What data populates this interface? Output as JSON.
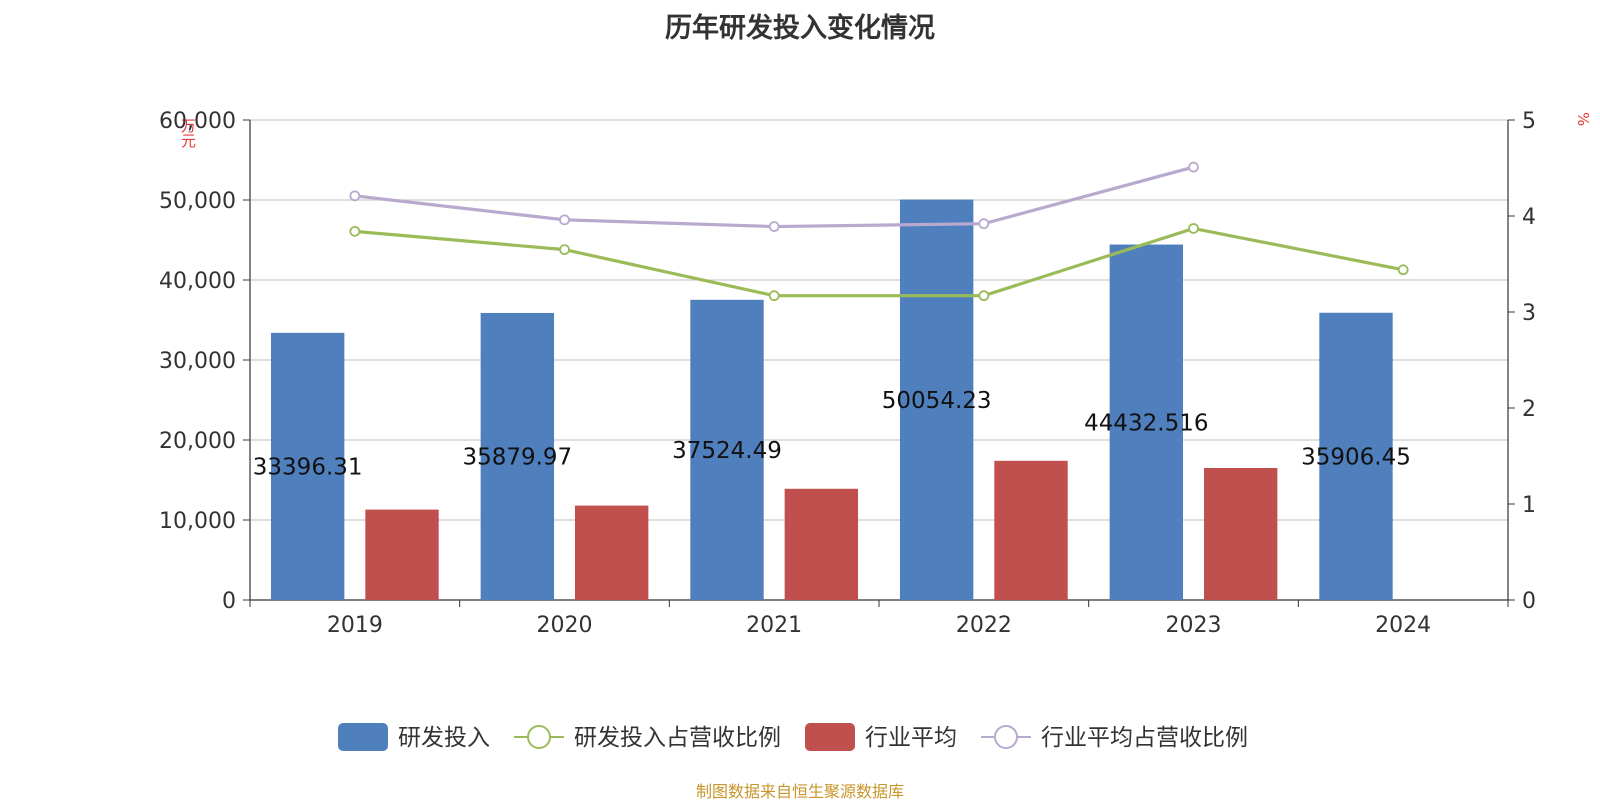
{
  "chart_data": {
    "type": "bar",
    "title": "历年研发投入变化情况",
    "categories": [
      "2019",
      "2020",
      "2021",
      "2022",
      "2023",
      "2024"
    ],
    "y_left": {
      "label": "万元",
      "range": [
        0,
        60000
      ],
      "ticks": [
        "0",
        "10,000",
        "20,000",
        "30,000",
        "40,000",
        "50,000",
        "60,000"
      ]
    },
    "y_right": {
      "label": "%",
      "range": [
        0,
        5
      ],
      "ticks": [
        "0",
        "1",
        "2",
        "3",
        "4",
        "5"
      ]
    },
    "grid": true,
    "legend_position": "bottom",
    "series": [
      {
        "name": "研发投入",
        "type": "bar",
        "axis": "left",
        "color": "#4f7fbd",
        "values": [
          33396.31,
          35879.97,
          37524.49,
          50054.23,
          44432.516,
          35906.45
        ],
        "labels": [
          "33396.31",
          "35879.97",
          "37524.49",
          "50054.23",
          "44432.516",
          "35906.45"
        ]
      },
      {
        "name": "研发投入占营收比例",
        "type": "line",
        "axis": "right",
        "color": "#9bbb59",
        "values": [
          3.84,
          3.65,
          3.17,
          3.17,
          3.87,
          3.44
        ]
      },
      {
        "name": "行业平均",
        "type": "bar",
        "axis": "left",
        "color": "#c0504d",
        "values": [
          11300,
          11800,
          13900,
          17400,
          16500,
          null
        ]
      },
      {
        "name": "行业平均占营收比例",
        "type": "line",
        "axis": "right",
        "color": "#b8a9cf",
        "values": [
          4.21,
          3.96,
          3.89,
          3.92,
          4.51,
          null
        ]
      }
    ]
  },
  "source_note": "制图数据来自恒生聚源数据库"
}
